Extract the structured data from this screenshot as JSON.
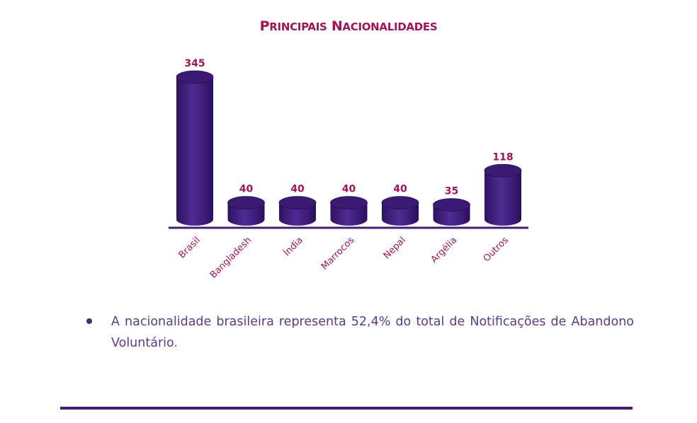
{
  "title": "Principais Nacionalidades",
  "title_parts": {
    "p1_cap": "P",
    "p1_rest": "RINCIPAIS",
    "p2_cap": "N",
    "p2_rest": "ACIONALIDADES"
  },
  "colors": {
    "title": "#a0145a",
    "bar": "#3f1d78",
    "bar_highlight": "#5a35a0",
    "bar_top": "#3a1a72",
    "value_labels": "#a0145a",
    "category_labels": "#a0145a",
    "axis": "#3f1d78",
    "body_text": "#5b3a86"
  },
  "chart_data": {
    "type": "bar",
    "style": "3d-cylinder",
    "title": "Principais Nacionalidades",
    "categories": [
      "Brasil",
      "Bangladesh",
      "Índia",
      "Marrocos",
      "Nepal",
      "Argélia",
      "Outros"
    ],
    "values": [
      345,
      40,
      40,
      40,
      40,
      35,
      118
    ],
    "value_labels": [
      "345",
      "40",
      "40",
      "40",
      "40",
      "35",
      "118"
    ],
    "xlabel": "",
    "ylabel": "",
    "ylim": [
      0,
      345
    ],
    "grid": false,
    "legend": null,
    "x_tick_rotation": -45
  },
  "bullets": [
    {
      "text": "A nacionalidade brasileira representa 52,4% do total de Notificações de Abandono Voluntário."
    }
  ]
}
